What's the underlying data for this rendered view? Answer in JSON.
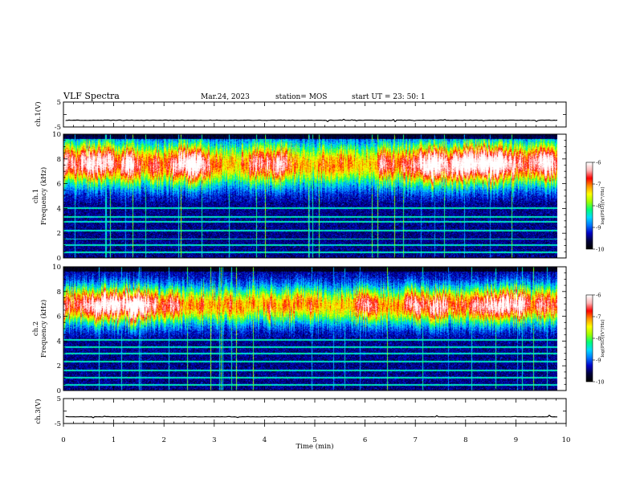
{
  "header": {
    "title": "VLF Spectra",
    "date": "Mar.24, 2023",
    "station": "station= MOS",
    "start_time": "start  UT =   23: 50: 1"
  },
  "colors": {
    "spectrogram_scale": [
      "#000000",
      "#00003c",
      "#0000c8",
      "#0078ff",
      "#00dcff",
      "#00ff78",
      "#a0ff00",
      "#ffff00",
      "#ff9600",
      "#ff0000",
      "#ffb4b4",
      "#ffffff"
    ]
  },
  "chart_data": [
    {
      "id": "ch1-waveform",
      "type": "line",
      "ylabel": "ch.1(V)",
      "ylim": [
        -5,
        5
      ],
      "yticks": [
        "5",
        "-5"
      ],
      "xlim": [
        0,
        10
      ],
      "baseline": -2.3
    },
    {
      "id": "ch1-spectrogram",
      "type": "heatmap",
      "ylabel": "ch.1\nFrequency (kHz)",
      "ylim": [
        0,
        10
      ],
      "yticks": [
        "0",
        "2",
        "4",
        "6",
        "8",
        "10"
      ],
      "xlim": [
        0,
        10
      ],
      "color_scale": {
        "label": "log(PSD)(V²/Hz)",
        "range": [
          -10,
          -6
        ],
        "ticks": [
          "-6",
          "-7",
          "-8",
          "-9",
          "-10"
        ]
      },
      "band_center_khz": 7.6,
      "band_width_khz": 4.2,
      "quiet_below_khz": 4.5,
      "tones_khz": [
        0.4,
        1.0,
        1.5,
        2.2,
        2.9,
        3.3,
        4.0
      ]
    },
    {
      "id": "ch2-spectrogram",
      "type": "heatmap",
      "ylabel": "ch.2\nFrequency (kHz)",
      "ylim": [
        0,
        10
      ],
      "yticks": [
        "0",
        "2",
        "4",
        "6",
        "8",
        "10"
      ],
      "xlim": [
        0,
        10
      ],
      "color_scale": {
        "label": "log(PSD)(V²/Hz)",
        "range": [
          -10,
          -6
        ],
        "ticks": [
          "-6",
          "-7",
          "-8",
          "-9",
          "-10"
        ]
      },
      "band_center_khz": 6.9,
      "band_width_khz": 3.6,
      "quiet_below_khz": 4.2,
      "tones_khz": [
        0.4,
        1.0,
        1.6,
        2.3,
        3.0,
        3.5,
        4.1
      ]
    },
    {
      "id": "ch3-waveform",
      "type": "line",
      "ylabel": "ch.3(V)",
      "ylim": [
        -5,
        5
      ],
      "yticks": [
        "5",
        "-5"
      ],
      "xlim": [
        0,
        10
      ],
      "baseline": -2.3
    }
  ],
  "x_axis": {
    "label": "Time (min)",
    "range": [
      0,
      10
    ],
    "ticks": [
      "0",
      "1",
      "2",
      "3",
      "4",
      "5",
      "6",
      "7",
      "8",
      "9",
      "10"
    ],
    "data_end_min": 9.83
  }
}
